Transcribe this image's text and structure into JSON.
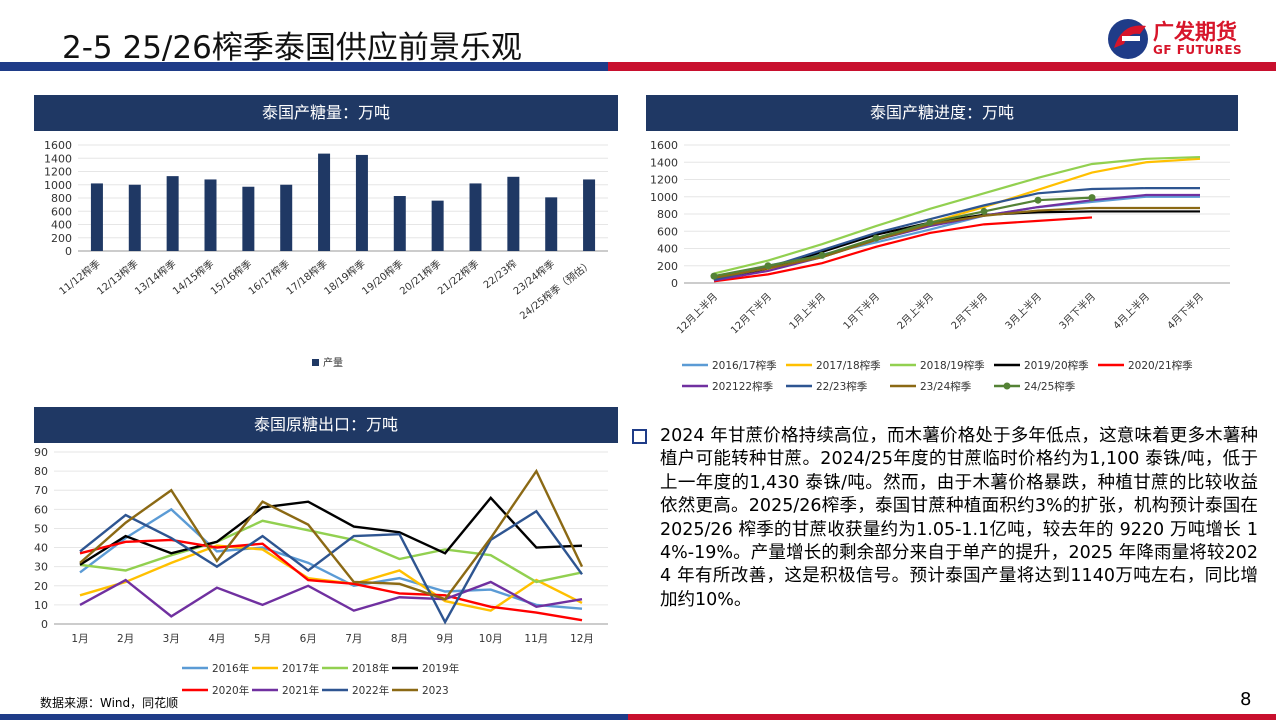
{
  "header": {
    "title": "2-5 25/26榨季泰国供应前景乐观"
  },
  "logo": {
    "cn": "广发期货",
    "en": "GF FUTURES"
  },
  "footer": {
    "source": "数据来源：Wind，同花顺",
    "page": "8"
  },
  "bullet": {
    "text": "2024 年甘蔗价格持续高位，而木薯价格处于多年低点，这意味着更多木薯种植户可能转种甘蔗。2024/25年度的甘蔗临时价格约为1,100 泰铢/吨，低于上一年度的1,430 泰铢/吨。然而，由于木薯价格暴跌，种植甘蔗的比较收益依然更高。2025/26榨季，泰国甘蔗种植面积约3%的扩张，机构预计泰国在 2025/26 榨季的甘蔗收获量约为1.05-1.1亿吨，较去年的 9220 万吨增长 14%-19%。产量增长的剩余部分来自于单产的提升，2025 年降雨量将较2024 年有所改善，这是积极信号。预计泰国产量将达到1140万吨左右，同比增加约10%。"
  },
  "chart_data": [
    {
      "type": "bar",
      "title": "泰国产糖量：万吨",
      "categories": [
        "11/12榨季",
        "12/13榨季",
        "13/14榨季",
        "14/15榨季",
        "15/16榨季",
        "16/17榨季",
        "17/18榨季",
        "18/19榨季",
        "19/20榨季",
        "20/21榨季",
        "21/22榨季",
        "22/23榨",
        "23/24榨季",
        "24/25榨季（预估）"
      ],
      "values": [
        1020,
        1000,
        1130,
        1080,
        970,
        1000,
        1470,
        1450,
        830,
        760,
        1020,
        1120,
        810,
        1080
      ],
      "series_name": "产量",
      "ylim": [
        0,
        1600
      ],
      "yticks": [
        0,
        200,
        400,
        600,
        800,
        1000,
        1200,
        1400,
        1600
      ],
      "color": "#1f3864",
      "legend": "bottom"
    },
    {
      "type": "line",
      "title": "泰国产糖进度：万吨",
      "categories": [
        "12月上半月",
        "12月下半月",
        "1月上半月",
        "1月下半月",
        "2月上半月",
        "2月下半月",
        "3月上半月",
        "3月下半月",
        "4月上半月",
        "4月下半月"
      ],
      "ylim": [
        0,
        1600
      ],
      "yticks": [
        0,
        200,
        400,
        600,
        800,
        1000,
        1200,
        1400,
        1600
      ],
      "legend": "bottom",
      "series": [
        {
          "name": "2016/17榨季",
          "color": "#5b9bd5",
          "values": [
            60,
            200,
            330,
            470,
            620,
            780,
            880,
            940,
            1000,
            1000
          ]
        },
        {
          "name": "2017/18榨季",
          "color": "#ffc000",
          "values": [
            40,
            160,
            300,
            500,
            700,
            880,
            1080,
            1280,
            1400,
            1440
          ]
        },
        {
          "name": "2018/19榨季",
          "color": "#92d050",
          "values": [
            110,
            260,
            450,
            660,
            860,
            1040,
            1220,
            1380,
            1440,
            1460
          ]
        },
        {
          "name": "2019/20榨季",
          "color": "#000000",
          "values": [
            30,
            170,
            360,
            560,
            700,
            790,
            820,
            830,
            830,
            830
          ]
        },
        {
          "name": "2020/21榨季",
          "color": "#ff0000",
          "values": [
            20,
            100,
            230,
            420,
            580,
            680,
            720,
            760,
            null,
            null
          ]
        },
        {
          "name": "202122榨季",
          "color": "#7030a0",
          "values": [
            30,
            140,
            300,
            500,
            660,
            780,
            880,
            960,
            1020,
            1020
          ]
        },
        {
          "name": "22/23榨季",
          "color": "#2e5591",
          "values": [
            40,
            180,
            380,
            580,
            740,
            900,
            1040,
            1090,
            1100,
            1100
          ]
        },
        {
          "name": "23/24榨季",
          "color": "#8b6914",
          "values": [
            60,
            170,
            300,
            500,
            680,
            780,
            840,
            870,
            870,
            870
          ]
        },
        {
          "name": "24/25榨季",
          "color": "#548235",
          "marker": true,
          "values": [
            80,
            200,
            320,
            520,
            700,
            830,
            960,
            990,
            null,
            null
          ]
        }
      ]
    },
    {
      "type": "line",
      "title": "泰国原糖出口：万吨",
      "categories": [
        "1月",
        "2月",
        "3月",
        "4月",
        "5月",
        "6月",
        "7月",
        "8月",
        "9月",
        "10月",
        "11月",
        "12月"
      ],
      "ylim": [
        0,
        90
      ],
      "yticks": [
        0,
        10,
        20,
        30,
        40,
        50,
        60,
        70,
        80,
        90
      ],
      "legend": "bottom",
      "series": [
        {
          "name": "2016年",
          "color": "#5b9bd5",
          "values": [
            27,
            45,
            60,
            38,
            40,
            32,
            20,
            24,
            17,
            18,
            10,
            8
          ]
        },
        {
          "name": "2017年",
          "color": "#ffc000",
          "values": [
            15,
            22,
            32,
            41,
            39,
            24,
            21,
            28,
            12,
            7,
            23,
            11
          ]
        },
        {
          "name": "2018年",
          "color": "#92d050",
          "values": [
            31,
            28,
            36,
            43,
            54,
            49,
            44,
            34,
            39,
            36,
            22,
            27
          ]
        },
        {
          "name": "2019年",
          "color": "#000000",
          "values": [
            31,
            46,
            37,
            43,
            61,
            64,
            51,
            48,
            37,
            66,
            40,
            41
          ]
        },
        {
          "name": "2020年",
          "color": "#ff0000",
          "values": [
            37,
            43,
            44,
            40,
            42,
            23,
            21,
            16,
            15,
            9,
            6,
            2
          ]
        },
        {
          "name": "2021年",
          "color": "#7030a0",
          "values": [
            10,
            23,
            4,
            19,
            10,
            20,
            7,
            14,
            13,
            22,
            9,
            13
          ]
        },
        {
          "name": "2022年",
          "color": "#2e5591",
          "values": [
            38,
            57,
            45,
            30,
            46,
            28,
            46,
            47,
            1,
            44,
            59,
            26
          ]
        },
        {
          "name": "2023",
          "color": "#8b6914",
          "values": [
            32,
            53,
            70,
            33,
            64,
            52,
            22,
            21,
            13,
            45,
            80,
            30
          ]
        }
      ]
    }
  ]
}
